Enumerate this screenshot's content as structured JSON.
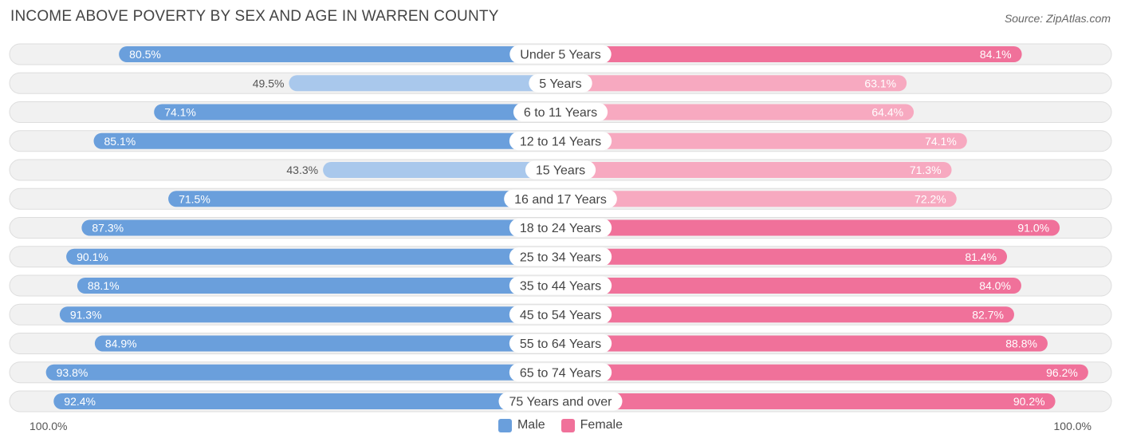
{
  "chart_data": {
    "type": "bar",
    "orientation": "horizontal-diverging",
    "title": "INCOME ABOVE POVERTY BY SEX AND AGE IN WARREN COUNTY",
    "source": "Source: ZipAtlas.com",
    "categories": [
      "Under 5 Years",
      "5 Years",
      "6 to 11 Years",
      "12 to 14 Years",
      "15 Years",
      "16 and 17 Years",
      "18 to 24 Years",
      "25 to 34 Years",
      "35 to 44 Years",
      "45 to 54 Years",
      "55 to 64 Years",
      "65 to 74 Years",
      "75 Years and over"
    ],
    "series": [
      {
        "name": "Male",
        "values": [
          80.5,
          49.5,
          74.1,
          85.1,
          43.3,
          71.5,
          87.3,
          90.1,
          88.1,
          91.3,
          84.9,
          93.8,
          92.4
        ],
        "labels": [
          "80.5%",
          "49.5%",
          "74.1%",
          "85.1%",
          "43.3%",
          "71.5%",
          "87.3%",
          "90.1%",
          "88.1%",
          "91.3%",
          "84.9%",
          "93.8%",
          "92.4%"
        ]
      },
      {
        "name": "Female",
        "values": [
          84.1,
          63.1,
          64.4,
          74.1,
          71.3,
          72.2,
          91.0,
          81.4,
          84.0,
          82.7,
          88.8,
          96.2,
          90.2
        ],
        "labels": [
          "84.1%",
          "63.1%",
          "64.4%",
          "74.1%",
          "71.3%",
          "72.2%",
          "91.0%",
          "81.4%",
          "84.0%",
          "82.7%",
          "88.8%",
          "96.2%",
          "90.2%"
        ]
      }
    ],
    "xlim": [
      0,
      100
    ],
    "axis_left_label": "100.0%",
    "axis_right_label": "100.0%",
    "legend_position": "bottom-center",
    "colors": {
      "male_strong": "#6a9fdc",
      "male_light": "#a9c8ec",
      "female_strong": "#f0719a",
      "female_light": "#f7a9c0",
      "track": "#f1f1f1",
      "track_border": "#dddddd"
    }
  }
}
